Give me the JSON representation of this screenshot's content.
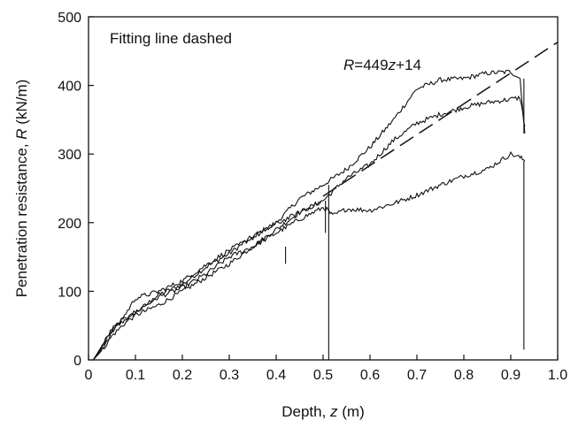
{
  "chart_data": {
    "type": "line",
    "xlabel": "Depth, z (m)",
    "xlabel_parts": [
      "Depth, ",
      "z",
      " (m)"
    ],
    "ylabel": "Penetration resistance, R (kN/m)",
    "ylabel_parts": [
      "Penetration resistance, ",
      "R",
      " (kN/m)"
    ],
    "xlim": [
      0,
      1.0
    ],
    "ylim": [
      0,
      500
    ],
    "x_ticks": [
      0,
      0.1,
      0.2,
      0.3,
      0.4,
      0.5,
      0.6,
      0.7,
      0.8,
      0.9,
      1.0
    ],
    "x_tick_labels": [
      "0",
      "0.1",
      "0.2",
      "0.3",
      "0.4",
      "0.5",
      "0.6",
      "0.7",
      "0.8",
      "0.9",
      "1.0"
    ],
    "y_ticks": [
      0,
      100,
      200,
      300,
      400,
      500
    ],
    "y_tick_labels": [
      "0",
      "100",
      "200",
      "300",
      "400",
      "500"
    ],
    "grid": false,
    "legend": "none",
    "annotations": {
      "note": "Fitting line dashed",
      "equation": "R=449z+14",
      "equation_parts": [
        "R",
        "=449",
        "z",
        "+14"
      ]
    },
    "fit_line": {
      "slope": 449,
      "intercept": 14,
      "x": [
        0.5,
        1.0
      ],
      "style": "dashed"
    },
    "series": [
      {
        "x": [
          0.01,
          0.03,
          0.05,
          0.08,
          0.1,
          0.15,
          0.2,
          0.25,
          0.3,
          0.35,
          0.4,
          0.45,
          0.5,
          0.55,
          0.6,
          0.65,
          0.7,
          0.75,
          0.8,
          0.85,
          0.9,
          0.92,
          0.93
        ],
        "y": [
          0,
          20,
          42,
          60,
          68,
          95,
          110,
          135,
          155,
          180,
          200,
          235,
          255,
          278,
          310,
          350,
          395,
          408,
          410,
          418,
          420,
          410,
          330
        ]
      },
      {
        "x": [
          0.01,
          0.03,
          0.05,
          0.08,
          0.1,
          0.15,
          0.2,
          0.25,
          0.3,
          0.35,
          0.4,
          0.45,
          0.5,
          0.55,
          0.6,
          0.65,
          0.7,
          0.75,
          0.8,
          0.85,
          0.9,
          0.92,
          0.93
        ],
        "y": [
          0,
          15,
          35,
          55,
          65,
          80,
          100,
          120,
          140,
          165,
          190,
          215,
          232,
          265,
          285,
          320,
          345,
          358,
          368,
          375,
          380,
          382,
          340
        ]
      },
      {
        "x": [
          0.01,
          0.03,
          0.05,
          0.08,
          0.1,
          0.15,
          0.2,
          0.25,
          0.3,
          0.35,
          0.4,
          0.45,
          0.5,
          0.51,
          0.52,
          0.55,
          0.6,
          0.65,
          0.7,
          0.75,
          0.8,
          0.85,
          0.9,
          0.92,
          0.93
        ],
        "y": [
          0,
          22,
          45,
          62,
          70,
          92,
          105,
          125,
          150,
          165,
          185,
          205,
          222,
          218,
          210,
          220,
          218,
          228,
          240,
          255,
          268,
          278,
          300,
          295,
          290
        ]
      },
      {
        "x": [
          0.01,
          0.03,
          0.05,
          0.08,
          0.1,
          0.15,
          0.2,
          0.25,
          0.3,
          0.35,
          0.4,
          0.45,
          0.5
        ],
        "y": [
          0,
          18,
          40,
          68,
          90,
          100,
          115,
          138,
          160,
          178,
          198,
          215,
          232
        ]
      }
    ],
    "drops": [
      {
        "x": 0.505,
        "y_from": 232,
        "y_to": 185
      },
      {
        "x": 0.512,
        "y_from": 255,
        "y_to": 0
      },
      {
        "x": 0.928,
        "y_from": 410,
        "y_to": 330
      },
      {
        "x": 0.928,
        "y_from": 290,
        "y_to": 15
      },
      {
        "x": 0.42,
        "y_from": 165,
        "y_to": 140
      }
    ]
  }
}
